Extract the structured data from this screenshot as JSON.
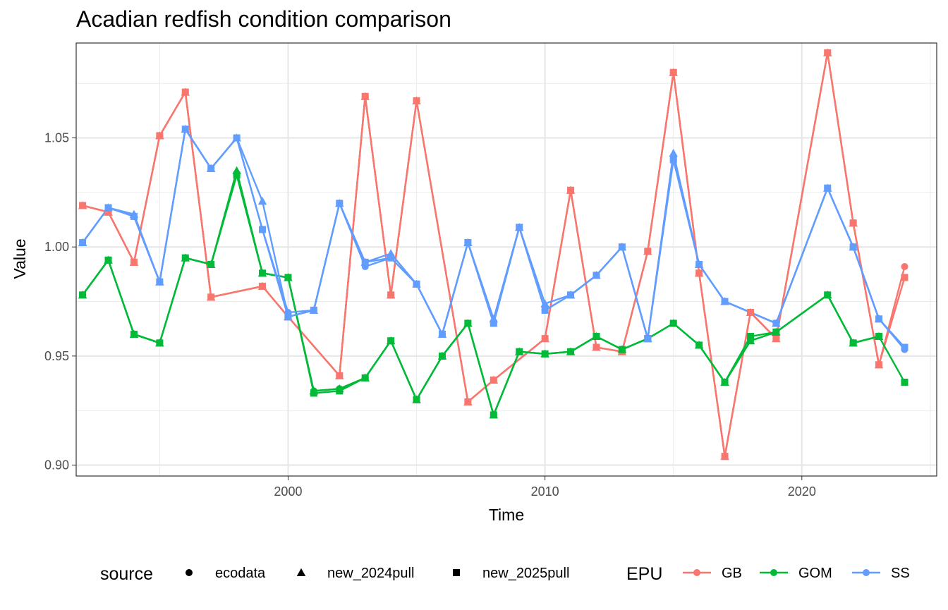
{
  "chart_data": {
    "type": "line",
    "title": "Acadian redfish condition comparison",
    "xlabel": "Time",
    "ylabel": "Value",
    "xlim": [
      1991.75,
      2025.25
    ],
    "ylim": [
      0.895,
      1.0935
    ],
    "x_ticks": [
      2000,
      2010,
      2020
    ],
    "x_tick_labels": [
      "2000",
      "2010",
      "2020"
    ],
    "y_ticks": [
      0.9,
      0.95,
      1.0,
      1.05
    ],
    "y_tick_labels": [
      "0.90",
      "0.95",
      "1.00",
      "1.05"
    ],
    "grid": true,
    "legend_position": "bottom",
    "legend": {
      "source_title": "source",
      "source_entries": [
        {
          "label": "ecodata",
          "shape": "circle"
        },
        {
          "label": "new_2024pull",
          "shape": "triangle"
        },
        {
          "label": "new_2025pull",
          "shape": "square"
        }
      ],
      "epu_title": "EPU"
    },
    "series": [
      {
        "name": "GB",
        "color": "#F8766D",
        "source": "ecodata",
        "points": [
          [
            1992,
            1.019
          ],
          [
            1993,
            1.016
          ],
          [
            1994,
            0.993
          ],
          [
            1995,
            1.051
          ],
          [
            1996,
            1.071
          ],
          [
            1997,
            0.977
          ],
          [
            1999,
            0.982
          ],
          [
            2000,
            0.968
          ],
          [
            2002,
            0.941
          ],
          [
            2003,
            1.069
          ],
          [
            2004,
            0.978
          ],
          [
            2005,
            1.067
          ],
          [
            2007,
            0.929
          ],
          [
            2008,
            0.939
          ],
          [
            2010,
            0.958
          ],
          [
            2011,
            1.026
          ],
          [
            2012,
            0.954
          ],
          [
            2013,
            0.952
          ],
          [
            2014,
            0.998
          ],
          [
            2015,
            1.08
          ],
          [
            2016,
            0.988
          ],
          [
            2017,
            0.904
          ],
          [
            2018,
            0.97
          ],
          [
            2019,
            0.958
          ],
          [
            2021,
            1.089
          ],
          [
            2022,
            1.011
          ],
          [
            2023,
            0.946
          ],
          [
            2024,
            0.991
          ]
        ]
      },
      {
        "name": "GB",
        "color": "#F8766D",
        "source": "new_2024pull",
        "points": [
          [
            1992,
            1.019
          ],
          [
            1993,
            1.016
          ],
          [
            1994,
            0.993
          ],
          [
            1995,
            1.051
          ],
          [
            1996,
            1.071
          ],
          [
            1997,
            0.977
          ],
          [
            1999,
            0.982
          ],
          [
            2000,
            0.968
          ],
          [
            2002,
            0.941
          ],
          [
            2003,
            1.069
          ],
          [
            2004,
            0.978
          ],
          [
            2005,
            1.067
          ],
          [
            2007,
            0.929
          ],
          [
            2008,
            0.939
          ],
          [
            2010,
            0.958
          ],
          [
            2011,
            1.026
          ],
          [
            2012,
            0.954
          ],
          [
            2013,
            0.952
          ],
          [
            2014,
            0.998
          ],
          [
            2015,
            1.08
          ],
          [
            2016,
            0.988
          ],
          [
            2017,
            0.904
          ],
          [
            2018,
            0.97
          ],
          [
            2019,
            0.958
          ],
          [
            2021,
            1.089
          ],
          [
            2022,
            1.011
          ],
          [
            2023,
            0.946
          ]
        ]
      },
      {
        "name": "GB",
        "color": "#F8766D",
        "source": "new_2025pull",
        "points": [
          [
            1992,
            1.019
          ],
          [
            1993,
            1.016
          ],
          [
            1994,
            0.993
          ],
          [
            1995,
            1.051
          ],
          [
            1996,
            1.071
          ],
          [
            1997,
            0.977
          ],
          [
            1999,
            0.982
          ],
          [
            2000,
            0.968
          ],
          [
            2002,
            0.941
          ],
          [
            2003,
            1.069
          ],
          [
            2004,
            0.978
          ],
          [
            2005,
            1.067
          ],
          [
            2007,
            0.929
          ],
          [
            2008,
            0.939
          ],
          [
            2010,
            0.958
          ],
          [
            2011,
            1.026
          ],
          [
            2012,
            0.954
          ],
          [
            2013,
            0.952
          ],
          [
            2014,
            0.998
          ],
          [
            2015,
            1.08
          ],
          [
            2016,
            0.988
          ],
          [
            2017,
            0.904
          ],
          [
            2018,
            0.97
          ],
          [
            2019,
            0.958
          ],
          [
            2021,
            1.089
          ],
          [
            2022,
            1.011
          ],
          [
            2023,
            0.946
          ],
          [
            2024,
            0.986
          ]
        ]
      },
      {
        "name": "GOM",
        "color": "#00BA38",
        "source": "ecodata",
        "points": [
          [
            1992,
            0.978
          ],
          [
            1993,
            0.994
          ],
          [
            1994,
            0.96
          ],
          [
            1995,
            0.956
          ],
          [
            1996,
            0.995
          ],
          [
            1997,
            0.992
          ],
          [
            1998,
            1.033
          ],
          [
            1999,
            0.988
          ],
          [
            2000,
            0.986
          ],
          [
            2001,
            0.934
          ],
          [
            2002,
            0.935
          ],
          [
            2003,
            0.94
          ],
          [
            2004,
            0.957
          ],
          [
            2005,
            0.93
          ],
          [
            2006,
            0.95
          ],
          [
            2007,
            0.965
          ],
          [
            2008,
            0.923
          ],
          [
            2009,
            0.952
          ],
          [
            2010,
            0.951
          ],
          [
            2011,
            0.952
          ],
          [
            2012,
            0.959
          ],
          [
            2013,
            0.953
          ],
          [
            2014,
            0.958
          ],
          [
            2015,
            0.965
          ],
          [
            2016,
            0.955
          ],
          [
            2017,
            0.938
          ],
          [
            2018,
            0.957
          ],
          [
            2019,
            0.961
          ],
          [
            2021,
            0.978
          ],
          [
            2022,
            0.956
          ],
          [
            2023,
            0.959
          ]
        ]
      },
      {
        "name": "GOM",
        "color": "#00BA38",
        "source": "new_2024pull",
        "points": [
          [
            1992,
            0.978
          ],
          [
            1993,
            0.994
          ],
          [
            1994,
            0.96
          ],
          [
            1995,
            0.956
          ],
          [
            1996,
            0.995
          ],
          [
            1997,
            0.992
          ],
          [
            1998,
            1.035
          ],
          [
            1999,
            0.988
          ],
          [
            2000,
            0.986
          ],
          [
            2001,
            0.934
          ],
          [
            2002,
            0.935
          ],
          [
            2003,
            0.94
          ],
          [
            2004,
            0.957
          ],
          [
            2005,
            0.93
          ],
          [
            2006,
            0.95
          ],
          [
            2007,
            0.965
          ],
          [
            2008,
            0.923
          ],
          [
            2009,
            0.952
          ],
          [
            2010,
            0.951
          ],
          [
            2011,
            0.952
          ],
          [
            2012,
            0.959
          ],
          [
            2013,
            0.953
          ],
          [
            2014,
            0.958
          ],
          [
            2015,
            0.965
          ],
          [
            2016,
            0.955
          ],
          [
            2017,
            0.938
          ],
          [
            2018,
            0.957
          ],
          [
            2019,
            0.961
          ],
          [
            2021,
            0.978
          ],
          [
            2022,
            0.956
          ],
          [
            2023,
            0.959
          ]
        ]
      },
      {
        "name": "GOM",
        "color": "#00BA38",
        "source": "new_2025pull",
        "points": [
          [
            1992,
            0.978
          ],
          [
            1993,
            0.994
          ],
          [
            1994,
            0.96
          ],
          [
            1995,
            0.956
          ],
          [
            1996,
            0.995
          ],
          [
            1997,
            0.992
          ],
          [
            1998,
            1.033
          ],
          [
            1999,
            0.988
          ],
          [
            2000,
            0.986
          ],
          [
            2001,
            0.933
          ],
          [
            2002,
            0.934
          ],
          [
            2003,
            0.94
          ],
          [
            2004,
            0.957
          ],
          [
            2005,
            0.93
          ],
          [
            2006,
            0.95
          ],
          [
            2007,
            0.965
          ],
          [
            2008,
            0.923
          ],
          [
            2009,
            0.952
          ],
          [
            2010,
            0.951
          ],
          [
            2011,
            0.952
          ],
          [
            2012,
            0.959
          ],
          [
            2013,
            0.953
          ],
          [
            2014,
            0.958
          ],
          [
            2015,
            0.965
          ],
          [
            2016,
            0.955
          ],
          [
            2017,
            0.938
          ],
          [
            2018,
            0.959
          ],
          [
            2019,
            0.961
          ],
          [
            2021,
            0.978
          ],
          [
            2022,
            0.956
          ],
          [
            2023,
            0.959
          ],
          [
            2024,
            0.938
          ]
        ]
      },
      {
        "name": "SS",
        "color": "#619CFF",
        "source": "ecodata",
        "points": [
          [
            1992,
            1.002
          ],
          [
            1993,
            1.018
          ],
          [
            1994,
            1.014
          ],
          [
            1995,
            0.984
          ],
          [
            1996,
            1.054
          ],
          [
            1997,
            1.036
          ],
          [
            1998,
            1.05
          ],
          [
            1999,
            1.008
          ],
          [
            2000,
            0.97
          ],
          [
            2001,
            0.971
          ],
          [
            2002,
            1.02
          ],
          [
            2003,
            0.991
          ],
          [
            2004,
            0.995
          ],
          [
            2005,
            0.983
          ],
          [
            2006,
            0.96
          ],
          [
            2007,
            1.002
          ],
          [
            2008,
            0.965
          ],
          [
            2009,
            1.009
          ],
          [
            2010,
            0.971
          ],
          [
            2011,
            0.978
          ],
          [
            2012,
            0.987
          ],
          [
            2013,
            1.0
          ],
          [
            2014,
            0.958
          ],
          [
            2015,
            1.04
          ],
          [
            2016,
            0.992
          ],
          [
            2017,
            0.975
          ],
          [
            2019,
            0.965
          ],
          [
            2021,
            1.027
          ],
          [
            2022,
            1.0
          ],
          [
            2023,
            0.967
          ],
          [
            2024,
            0.953
          ]
        ]
      },
      {
        "name": "SS",
        "color": "#619CFF",
        "source": "new_2024pull",
        "points": [
          [
            1992,
            1.002
          ],
          [
            1993,
            1.018
          ],
          [
            1994,
            1.015
          ],
          [
            1995,
            0.984
          ],
          [
            1996,
            1.054
          ],
          [
            1997,
            1.036
          ],
          [
            1998,
            1.05
          ],
          [
            1999,
            1.021
          ],
          [
            2000,
            0.968
          ],
          [
            2001,
            0.971
          ],
          [
            2002,
            1.02
          ],
          [
            2003,
            0.993
          ],
          [
            2004,
            0.997
          ],
          [
            2005,
            0.983
          ],
          [
            2006,
            0.96
          ],
          [
            2007,
            1.002
          ],
          [
            2008,
            0.967
          ],
          [
            2009,
            1.009
          ],
          [
            2010,
            0.974
          ],
          [
            2011,
            0.978
          ],
          [
            2012,
            0.987
          ],
          [
            2013,
            1.0
          ],
          [
            2014,
            0.958
          ],
          [
            2015,
            1.043
          ],
          [
            2016,
            0.992
          ],
          [
            2017,
            0.975
          ],
          [
            2019,
            0.965
          ],
          [
            2021,
            1.027
          ],
          [
            2022,
            1.0
          ],
          [
            2023,
            0.967
          ]
        ]
      },
      {
        "name": "SS",
        "color": "#619CFF",
        "source": "new_2025pull",
        "points": [
          [
            1992,
            1.002
          ],
          [
            1993,
            1.018
          ],
          [
            1994,
            1.014
          ],
          [
            1995,
            0.984
          ],
          [
            1996,
            1.054
          ],
          [
            1997,
            1.036
          ],
          [
            1998,
            1.05
          ],
          [
            1999,
            1.008
          ],
          [
            2000,
            0.968
          ],
          [
            2001,
            0.971
          ],
          [
            2002,
            1.02
          ],
          [
            2003,
            0.993
          ],
          [
            2004,
            0.995
          ],
          [
            2005,
            0.983
          ],
          [
            2006,
            0.96
          ],
          [
            2007,
            1.002
          ],
          [
            2008,
            0.965
          ],
          [
            2009,
            1.009
          ],
          [
            2010,
            0.971
          ],
          [
            2011,
            0.978
          ],
          [
            2012,
            0.987
          ],
          [
            2013,
            1.0
          ],
          [
            2014,
            0.958
          ],
          [
            2015,
            1.04
          ],
          [
            2016,
            0.992
          ],
          [
            2017,
            0.975
          ],
          [
            2019,
            0.965
          ],
          [
            2021,
            1.027
          ],
          [
            2022,
            1.0
          ],
          [
            2023,
            0.967
          ],
          [
            2024,
            0.954
          ]
        ]
      }
    ]
  }
}
